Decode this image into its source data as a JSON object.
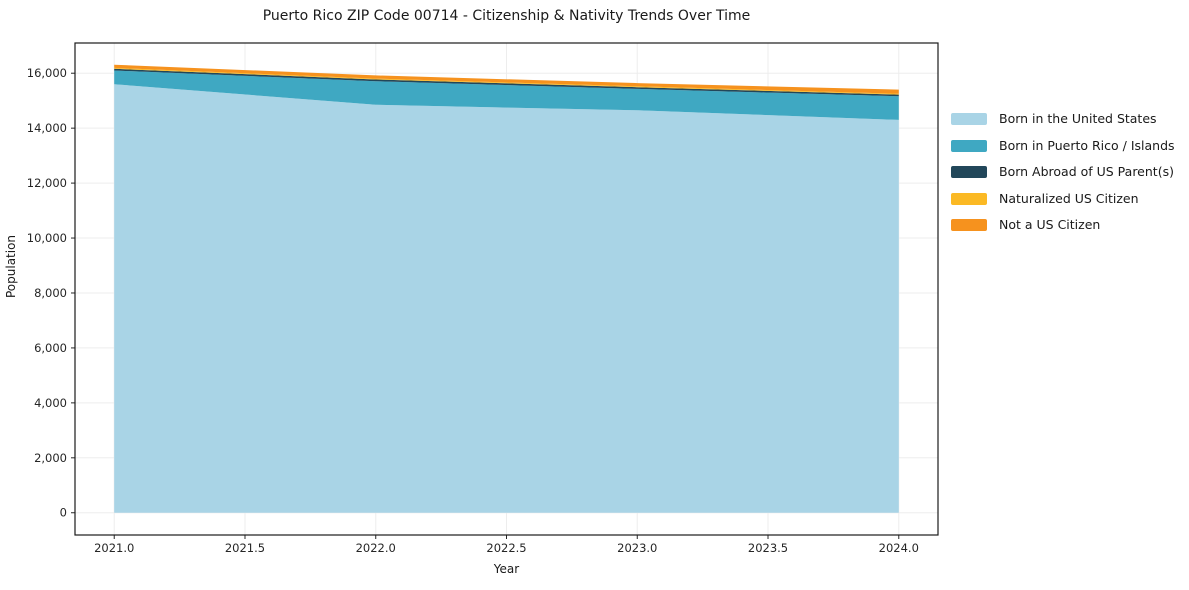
{
  "figure": {
    "background": "#ffffff",
    "spine_color": "#1a1a1a",
    "grid_color": "#ededed",
    "tick_color": "#262626"
  },
  "chart_data": {
    "type": "area",
    "stacked": true,
    "title": "Puerto Rico ZIP Code 00714 - Citizenship & Nativity Trends Over Time",
    "xlabel": "Year",
    "ylabel": "Population",
    "grid": true,
    "legend_position": "right-outside",
    "x": [
      2021,
      2022,
      2023,
      2024
    ],
    "xlim": [
      2020.85,
      2024.15
    ],
    "ylim": [
      -810,
      17100
    ],
    "x_ticks": [
      2021.0,
      2021.5,
      2022.0,
      2022.5,
      2023.0,
      2023.5,
      2024.0
    ],
    "x_tick_labels": [
      "2021.0",
      "2021.5",
      "2022.0",
      "2022.5",
      "2023.0",
      "2023.5",
      "2024.0"
    ],
    "y_ticks": [
      0,
      2000,
      4000,
      6000,
      8000,
      10000,
      12000,
      14000,
      16000
    ],
    "y_tick_labels": [
      "0",
      "2,000",
      "4,000",
      "6,000",
      "8,000",
      "10,000",
      "12,000",
      "14,000",
      "16,000"
    ],
    "series": [
      {
        "name": "Born in the United States",
        "color": "#A9D4E6",
        "values": [
          15600,
          14850,
          14650,
          14300
        ]
      },
      {
        "name": "Born in Puerto Rico / Islands",
        "color": "#3FA8C2",
        "values": [
          500,
          860,
          780,
          860
        ]
      },
      {
        "name": "Born Abroad of US Parent(s)",
        "color": "#22475A",
        "values": [
          60,
          60,
          60,
          60
        ]
      },
      {
        "name": "Naturalized US Citizen",
        "color": "#FBB924",
        "values": [
          35,
          35,
          35,
          35
        ]
      },
      {
        "name": "Not a US Citizen",
        "color": "#F6921E",
        "values": [
          115,
          115,
          115,
          150
        ]
      }
    ]
  }
}
